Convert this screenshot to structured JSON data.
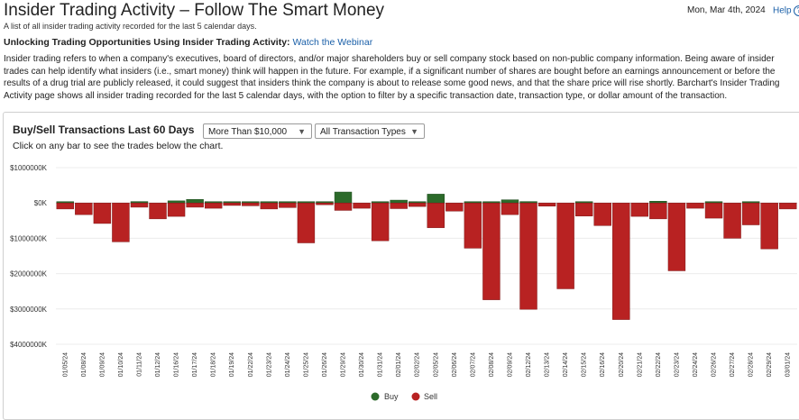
{
  "header": {
    "title": "Insider Trading Activity – Follow The Smart Money",
    "subtitle": "A list of all insider trading activity recorded for the last 5 calendar days.",
    "date": "Mon, Mar 4th, 2024",
    "help_label": "Help",
    "help_icon": "question-icon"
  },
  "promo": {
    "heading": "Unlocking Trading Opportunities Using Insider Trading Activity:",
    "link": "Watch the Webinar"
  },
  "description": [
    "Insider trading refers to when a company's executives, board of directors, and/or major shareholders buy or sell company stock based on non-public company information. Being aware of insider",
    "trades can help identify what insiders (i.e., smart money) think will happen in the future. For example, if a significant number of shares are bought before an earnings announcement or before the",
    "results of a drug trial are publicly released, it could suggest that insiders think the company is about to release some good news, and that the share price will rise shortly. Barchart's Insider Trading",
    "Activity page shows all insider trading recorded for the last 5 calendar days, with the option to filter by a specific transaction date, transaction type, or dollar amount of the transaction."
  ],
  "panel": {
    "title": "Buy/Sell Transactions Last 60 Days",
    "amount_filter": "More Than $10,000",
    "type_filter": "All Transaction Types",
    "hint": "Click on any bar to see the trades below the chart."
  },
  "chart_data": {
    "type": "bar",
    "title": "Buy/Sell Transactions Last 60 Days",
    "ylim": [
      -4000000,
      1000000
    ],
    "y_ticks": [
      {
        "value": 1000000,
        "label": "$1000000K"
      },
      {
        "value": 0,
        "label": "$0K"
      },
      {
        "value": -1000000,
        "label": "$1000000K"
      },
      {
        "value": -2000000,
        "label": "$2000000K"
      },
      {
        "value": -3000000,
        "label": "$3000000K"
      },
      {
        "value": -4000000,
        "label": "$4000000K"
      }
    ],
    "categories": [
      "01/05/24",
      "01/08/24",
      "01/09/24",
      "01/10/24",
      "01/11/24",
      "01/12/24",
      "01/16/24",
      "01/17/24",
      "01/18/24",
      "01/19/24",
      "01/22/24",
      "01/23/24",
      "01/24/24",
      "01/25/24",
      "01/26/24",
      "01/29/24",
      "01/30/24",
      "01/31/24",
      "02/01/24",
      "02/02/24",
      "02/05/24",
      "02/06/24",
      "02/07/24",
      "02/08/24",
      "02/09/24",
      "02/12/24",
      "02/13/24",
      "02/14/24",
      "02/15/24",
      "02/16/24",
      "02/20/24",
      "02/21/24",
      "02/22/24",
      "02/23/24",
      "02/24/24",
      "02/26/24",
      "02/27/24",
      "02/28/24",
      "02/29/24",
      "03/01/24"
    ],
    "series": [
      {
        "name": "Buy",
        "color": "#2c6a2a",
        "values": [
          30000,
          0,
          0,
          0,
          40000,
          0,
          60000,
          100000,
          20000,
          10000,
          20000,
          10000,
          10000,
          30000,
          30000,
          310000,
          0,
          20000,
          80000,
          20000,
          250000,
          0,
          20000,
          10000,
          90000,
          40000,
          0,
          0,
          10000,
          0,
          0,
          0,
          50000,
          0,
          0,
          20000,
          0,
          20000,
          0,
          0
        ]
      },
      {
        "name": "Sell",
        "color": "#b82222",
        "values": [
          -170000,
          -330000,
          -580000,
          -1100000,
          -120000,
          -450000,
          -380000,
          -120000,
          -150000,
          -70000,
          -80000,
          -170000,
          -130000,
          -1130000,
          -50000,
          -210000,
          -150000,
          -1070000,
          -160000,
          -100000,
          -700000,
          -230000,
          -1280000,
          -2740000,
          -330000,
          -3010000,
          -90000,
          -2430000,
          -370000,
          -640000,
          -3300000,
          -380000,
          -450000,
          -1920000,
          -150000,
          -430000,
          -1000000,
          -620000,
          -1300000,
          -170000
        ]
      }
    ]
  }
}
